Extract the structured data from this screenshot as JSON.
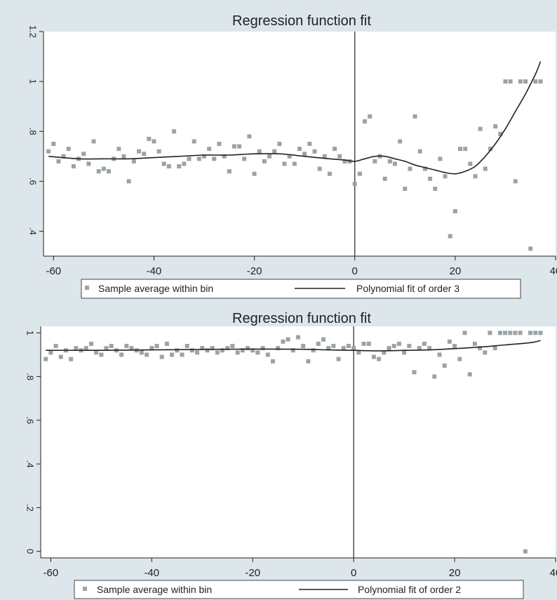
{
  "colors": {
    "panel_bg": "#dde6eb",
    "plot_bg": "#ffffff",
    "point": "#9aa3a6",
    "line": "#222222",
    "cutoff": "#333333",
    "axis": "#222222"
  },
  "chart_data": [
    {
      "type": "scatter",
      "title": "Regression function fit",
      "xlim": [
        -62,
        40
      ],
      "ylim": [
        0.3,
        1.2
      ],
      "xticks": [
        -60,
        -40,
        -20,
        0,
        20,
        40
      ],
      "yticks": [
        0.4,
        0.6,
        0.8,
        1,
        1.2
      ],
      "xtick_labels": [
        "-60",
        "-40",
        "-20",
        "0",
        "20",
        "40"
      ],
      "ytick_labels": [
        ".4",
        ".6",
        ".8",
        "1",
        "1.2"
      ],
      "cutoff_x": 0,
      "legend": {
        "points_label": "Sample average within bin",
        "line_label": "Polynomial fit of order 3",
        "placement": "bottom"
      },
      "series": [
        {
          "kind": "points",
          "x": [
            -61,
            -60,
            -59,
            -58,
            -57,
            -56,
            -55,
            -54,
            -53,
            -52,
            -51,
            -50,
            -49,
            -48,
            -47,
            -46,
            -45,
            -44,
            -43,
            -42,
            -41,
            -40,
            -39,
            -38,
            -37,
            -36,
            -35,
            -34,
            -33,
            -32,
            -31,
            -30,
            -29,
            -28,
            -27,
            -26,
            -25,
            -24,
            -23,
            -22,
            -21,
            -20,
            -19,
            -18,
            -17,
            -16,
            -15,
            -14,
            -13,
            -12,
            -11,
            -10,
            -9,
            -8,
            -7,
            -6,
            -5,
            -4,
            -3,
            -2,
            -1,
            0,
            1,
            2,
            3,
            4,
            5,
            6,
            7,
            8,
            9,
            10,
            11,
            12,
            13,
            14,
            15,
            16,
            17,
            18,
            19,
            20,
            21,
            22,
            23,
            24,
            25,
            26,
            27,
            28,
            29,
            30,
            31,
            32,
            33,
            34,
            35,
            36,
            37
          ],
          "y": [
            0.72,
            0.75,
            0.68,
            0.7,
            0.73,
            0.66,
            0.69,
            0.71,
            0.67,
            0.76,
            0.64,
            0.65,
            0.64,
            0.69,
            0.73,
            0.7,
            0.6,
            0.68,
            0.72,
            0.71,
            0.77,
            0.76,
            0.72,
            0.67,
            0.66,
            0.8,
            0.66,
            0.67,
            0.69,
            0.76,
            0.69,
            0.7,
            0.73,
            0.69,
            0.75,
            0.7,
            0.64,
            0.74,
            0.74,
            0.69,
            0.78,
            0.63,
            0.72,
            0.68,
            0.7,
            0.72,
            0.75,
            0.67,
            0.7,
            0.67,
            0.73,
            0.71,
            0.75,
            0.72,
            0.65,
            0.7,
            0.63,
            0.73,
            0.7,
            0.68,
            0.68,
            0.59,
            0.63,
            0.84,
            0.86,
            0.68,
            0.7,
            0.61,
            0.68,
            0.67,
            0.76,
            0.57,
            0.65,
            0.86,
            0.72,
            0.65,
            0.61,
            0.57,
            0.69,
            0.62,
            0.38,
            0.48,
            0.73,
            0.73,
            0.67,
            0.62,
            0.81,
            0.65,
            0.73,
            0.82,
            0.79,
            1.0,
            1.0,
            0.6,
            1.0,
            1.0,
            0.33,
            1.0,
            1.0
          ]
        },
        {
          "kind": "fit",
          "x": [
            -61,
            -55,
            -50,
            -45,
            -40,
            -35,
            -30,
            -25,
            -20,
            -15,
            -10,
            -5,
            -2,
            0,
            2,
            4,
            6,
            8,
            10,
            12,
            14,
            16,
            18,
            20,
            22,
            24,
            26,
            28,
            30,
            32,
            34,
            36,
            37
          ],
          "y": [
            0.7,
            0.69,
            0.69,
            0.69,
            0.695,
            0.7,
            0.705,
            0.705,
            0.71,
            0.71,
            0.7,
            0.69,
            0.685,
            0.68,
            0.69,
            0.7,
            0.7,
            0.69,
            0.68,
            0.665,
            0.655,
            0.645,
            0.635,
            0.63,
            0.64,
            0.66,
            0.7,
            0.75,
            0.81,
            0.88,
            0.95,
            1.03,
            1.08
          ]
        }
      ]
    },
    {
      "type": "scatter",
      "title": "Regression function fit",
      "xlim": [
        -62,
        40
      ],
      "ylim": [
        -0.03,
        1.03
      ],
      "xticks": [
        -60,
        -40,
        -20,
        0,
        20,
        40
      ],
      "yticks": [
        0,
        0.2,
        0.4,
        0.6,
        0.8,
        1
      ],
      "xtick_labels": [
        "-60",
        "-40",
        "-20",
        "0",
        "20",
        "40"
      ],
      "ytick_labels": [
        "0",
        ".2",
        ".4",
        ".6",
        ".8",
        "1"
      ],
      "cutoff_x": 0,
      "legend": {
        "points_label": "Sample average within bin",
        "line_label": "Polynomial fit of order 2",
        "placement": "bottom"
      },
      "series": [
        {
          "kind": "points",
          "x": [
            -61,
            -60,
            -59,
            -58,
            -57,
            -56,
            -55,
            -54,
            -53,
            -52,
            -51,
            -50,
            -49,
            -48,
            -47,
            -46,
            -45,
            -44,
            -43,
            -42,
            -41,
            -40,
            -39,
            -38,
            -37,
            -36,
            -35,
            -34,
            -33,
            -32,
            -31,
            -30,
            -29,
            -28,
            -27,
            -26,
            -25,
            -24,
            -23,
            -22,
            -21,
            -20,
            -19,
            -18,
            -17,
            -16,
            -15,
            -14,
            -13,
            -12,
            -11,
            -10,
            -9,
            -8,
            -7,
            -6,
            -5,
            -4,
            -3,
            -2,
            -1,
            0,
            1,
            2,
            3,
            4,
            5,
            6,
            7,
            8,
            9,
            10,
            11,
            12,
            13,
            14,
            15,
            16,
            17,
            18,
            19,
            20,
            21,
            22,
            23,
            24,
            25,
            26,
            27,
            28,
            29,
            30,
            31,
            32,
            33,
            34,
            35,
            36,
            37
          ],
          "y": [
            0.88,
            0.91,
            0.94,
            0.89,
            0.92,
            0.88,
            0.93,
            0.92,
            0.93,
            0.95,
            0.91,
            0.9,
            0.93,
            0.94,
            0.92,
            0.9,
            0.94,
            0.93,
            0.92,
            0.91,
            0.9,
            0.93,
            0.94,
            0.89,
            0.95,
            0.9,
            0.92,
            0.9,
            0.94,
            0.92,
            0.91,
            0.93,
            0.92,
            0.93,
            0.91,
            0.92,
            0.93,
            0.94,
            0.91,
            0.92,
            0.93,
            0.92,
            0.91,
            0.93,
            0.9,
            0.87,
            0.93,
            0.96,
            0.97,
            0.92,
            0.98,
            0.94,
            0.87,
            0.92,
            0.95,
            0.97,
            0.93,
            0.94,
            0.88,
            0.93,
            0.94,
            0.93,
            0.91,
            0.95,
            0.95,
            0.89,
            0.88,
            0.91,
            0.93,
            0.94,
            0.95,
            0.91,
            0.94,
            0.82,
            0.93,
            0.95,
            0.93,
            0.8,
            0.9,
            0.85,
            0.96,
            0.94,
            0.88,
            1.0,
            0.81,
            0.95,
            0.93,
            0.91,
            1.0,
            0.93,
            1.0,
            1.0,
            1.0,
            1.0,
            1.0,
            0.0,
            1.0,
            1.0,
            1.0
          ]
        },
        {
          "kind": "fit",
          "x": [
            -61,
            -50,
            -40,
            -30,
            -20,
            -10,
            -5,
            0,
            5,
            10,
            15,
            20,
            25,
            30,
            35,
            37
          ],
          "y": [
            0.92,
            0.92,
            0.922,
            0.924,
            0.926,
            0.925,
            0.922,
            0.92,
            0.918,
            0.92,
            0.922,
            0.928,
            0.935,
            0.945,
            0.955,
            0.965
          ]
        }
      ]
    }
  ]
}
